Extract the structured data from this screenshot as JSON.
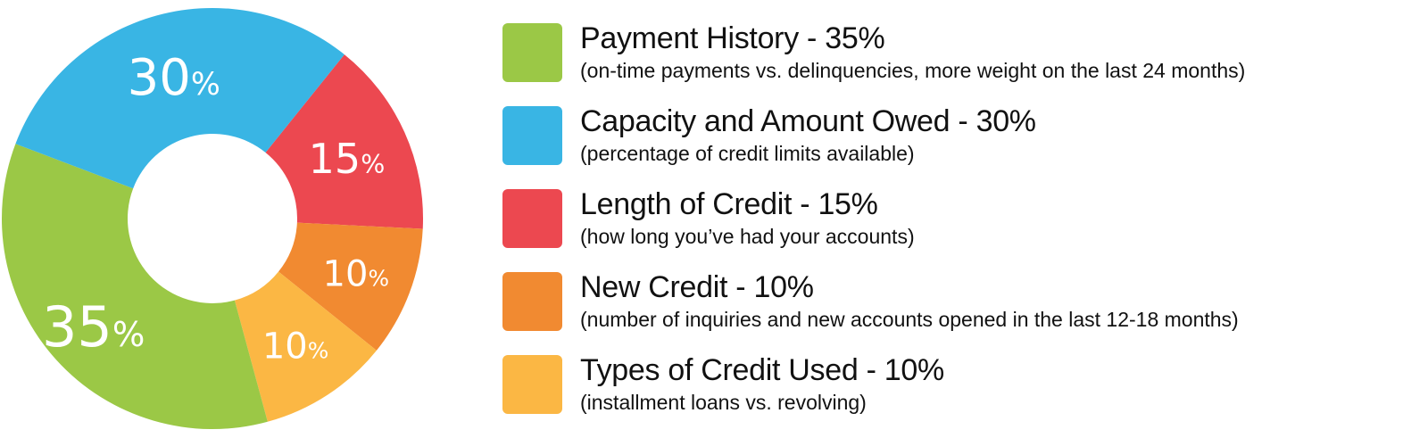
{
  "chart_data": {
    "type": "pie",
    "variant": "donut",
    "legend_position": "right",
    "slices": [
      {
        "name": "Payment History - 35%",
        "value": 35,
        "label": "35%",
        "color": "#9bc846",
        "description": "(on-time payments vs. delinquencies, more weight on the last 24 months)"
      },
      {
        "name": "Capacity and Amount Owed - 30%",
        "value": 30,
        "label": "30%",
        "color": "#39b5e4",
        "description": "(percentage of credit limits available)"
      },
      {
        "name": "Length of Credit - 15%",
        "value": 15,
        "label": "15%",
        "color": "#ec4850",
        "description": "(how long you’ve had your accounts)"
      },
      {
        "name": "New Credit - 10%",
        "value": 10,
        "label": "10%",
        "color": "#f18a31",
        "description": "(number of inquiries and new accounts opened in the last 12-18 months)"
      },
      {
        "name": "Types of Credit Used - 10%",
        "value": 10,
        "label": "10%",
        "color": "#fbb744",
        "description": "(installment loans vs. revolving)"
      }
    ]
  }
}
